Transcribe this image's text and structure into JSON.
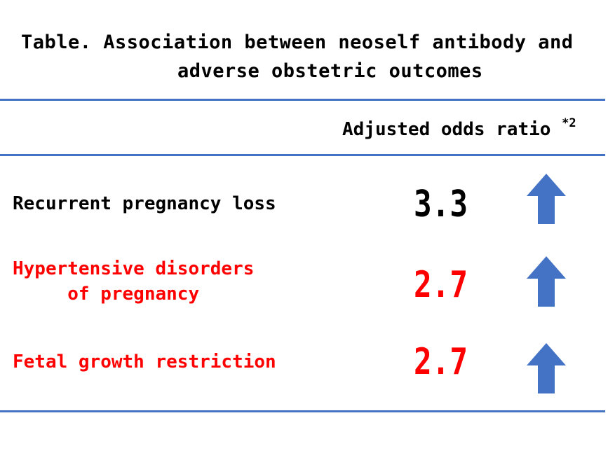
{
  "title": {
    "line1": "Table. Association between neoself antibody and",
    "line2": "adverse obstetric outcomes"
  },
  "column_header": {
    "label": "Adjusted odds ratio",
    "footnote_marker": "*2"
  },
  "rows": [
    {
      "label_lines": [
        "Recurrent pregnancy loss"
      ],
      "value": "3.3",
      "color": "#000000",
      "direction": "up",
      "icon": "up-arrow-icon"
    },
    {
      "label_lines": [
        "Hypertensive disorders",
        "of pregnancy"
      ],
      "value": "2.7",
      "color": "#ff0000",
      "direction": "up",
      "icon": "up-arrow-icon"
    },
    {
      "label_lines": [
        "Fetal growth restriction"
      ],
      "value": "2.7",
      "color": "#ff0000",
      "direction": "up",
      "icon": "up-arrow-icon"
    }
  ],
  "colors": {
    "rule": "#4472c4",
    "arrow": "#4472c4",
    "highlight": "#ff0000",
    "text": "#000000"
  }
}
